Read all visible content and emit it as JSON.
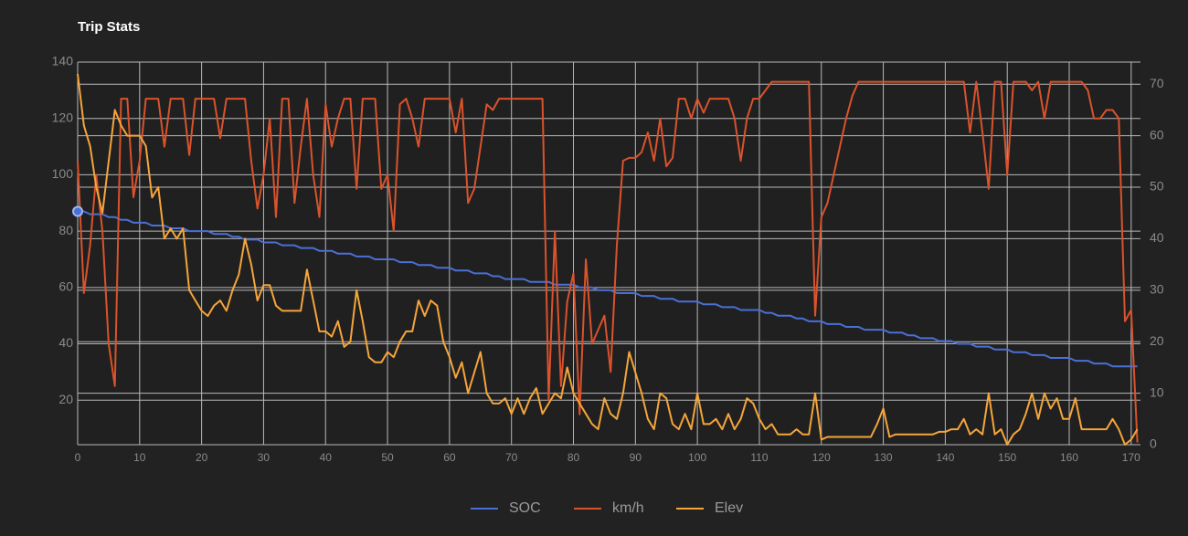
{
  "chart_data": {
    "type": "line",
    "title": "Trip Stats",
    "x": [
      0,
      1,
      2,
      3,
      4,
      5,
      6,
      7,
      8,
      9,
      10,
      11,
      12,
      13,
      14,
      15,
      16,
      17,
      18,
      19,
      20,
      21,
      22,
      23,
      24,
      25,
      26,
      27,
      28,
      29,
      30,
      31,
      32,
      33,
      34,
      35,
      36,
      37,
      38,
      39,
      40,
      41,
      42,
      43,
      44,
      45,
      46,
      47,
      48,
      49,
      50,
      51,
      52,
      53,
      54,
      55,
      56,
      57,
      58,
      59,
      60,
      61,
      62,
      63,
      64,
      65,
      66,
      67,
      68,
      69,
      70,
      71,
      72,
      73,
      74,
      75,
      76,
      77,
      78,
      79,
      80,
      81,
      82,
      83,
      84,
      85,
      86,
      87,
      88,
      89,
      90,
      91,
      92,
      93,
      94,
      95,
      96,
      97,
      98,
      99,
      100,
      101,
      102,
      103,
      104,
      105,
      106,
      107,
      108,
      109,
      110,
      111,
      112,
      113,
      114,
      115,
      116,
      117,
      118,
      119,
      120,
      121,
      122,
      123,
      124,
      125,
      126,
      127,
      128,
      129,
      130,
      131,
      132,
      133,
      134,
      135,
      136,
      137,
      138,
      139,
      140,
      141,
      142,
      143,
      144,
      145,
      146,
      147,
      148,
      149,
      150,
      151,
      152,
      153,
      154,
      155,
      156,
      157,
      158,
      159,
      160,
      161,
      162,
      163,
      164,
      165,
      166,
      167,
      168,
      169,
      170,
      171
    ],
    "series": [
      {
        "name": "SOC",
        "color": "#4a6fd6",
        "axis": "y",
        "values": [
          87,
          87,
          86,
          86,
          86,
          85,
          85,
          84,
          84,
          83,
          83,
          83,
          82,
          82,
          82,
          81,
          81,
          81,
          80,
          80,
          80,
          80,
          79,
          79,
          79,
          78,
          78,
          77,
          77,
          77,
          76,
          76,
          76,
          75,
          75,
          75,
          74,
          74,
          74,
          73,
          73,
          73,
          72,
          72,
          72,
          71,
          71,
          71,
          70,
          70,
          70,
          70,
          69,
          69,
          69,
          68,
          68,
          68,
          67,
          67,
          67,
          66,
          66,
          66,
          65,
          65,
          65,
          64,
          64,
          63,
          63,
          63,
          63,
          62,
          62,
          62,
          62,
          61,
          61,
          61,
          61,
          60,
          60,
          60,
          59,
          59,
          59,
          58,
          58,
          58,
          58,
          57,
          57,
          57,
          56,
          56,
          56,
          55,
          55,
          55,
          55,
          54,
          54,
          54,
          53,
          53,
          53,
          52,
          52,
          52,
          52,
          51,
          51,
          50,
          50,
          50,
          49,
          49,
          48,
          48,
          48,
          47,
          47,
          47,
          46,
          46,
          46,
          45,
          45,
          45,
          45,
          44,
          44,
          44,
          43,
          43,
          42,
          42,
          42,
          41,
          41,
          41,
          40,
          40,
          40,
          39,
          39,
          39,
          38,
          38,
          38,
          37,
          37,
          37,
          36,
          36,
          36,
          35,
          35,
          35,
          35,
          34,
          34,
          34,
          33,
          33,
          33,
          32,
          32,
          32,
          32,
          32
        ]
      },
      {
        "name": "km/h",
        "color": "#d9532c",
        "axis": "y",
        "values": [
          105,
          58,
          75,
          100,
          80,
          40,
          25,
          127,
          127,
          92,
          105,
          127,
          127,
          127,
          110,
          127,
          127,
          127,
          107,
          127,
          127,
          127,
          127,
          113,
          127,
          127,
          127,
          127,
          105,
          88,
          100,
          120,
          85,
          127,
          127,
          90,
          110,
          127,
          100,
          85,
          125,
          110,
          120,
          127,
          127,
          95,
          127,
          127,
          127,
          95,
          100,
          80,
          125,
          127,
          120,
          110,
          127,
          127,
          127,
          127,
          127,
          115,
          127,
          90,
          95,
          110,
          125,
          123,
          127,
          127,
          127,
          127,
          127,
          127,
          127,
          127,
          20,
          80,
          25,
          55,
          65,
          15,
          70,
          40,
          45,
          50,
          30,
          75,
          105,
          106,
          106,
          108,
          115,
          105,
          120,
          103,
          106,
          127,
          127,
          120,
          127,
          122,
          127,
          127,
          127,
          127,
          120,
          105,
          120,
          127,
          127,
          130,
          133,
          133,
          133,
          133,
          133,
          133,
          133,
          50,
          85,
          90,
          100,
          110,
          120,
          128,
          133,
          133,
          133,
          133,
          133,
          133,
          133,
          133,
          133,
          133,
          133,
          133,
          133,
          133,
          133,
          133,
          133,
          133,
          115,
          133,
          115,
          95,
          133,
          133,
          100,
          133,
          133,
          133,
          130,
          133,
          120,
          133,
          133,
          133,
          133,
          133,
          133,
          130,
          120,
          120,
          123,
          123,
          120,
          48,
          52,
          5
        ]
      },
      {
        "name": "Elev",
        "color": "#f5a53a",
        "axis": "y2",
        "values": [
          72,
          62,
          58,
          50,
          45,
          55,
          65,
          62,
          60,
          60,
          60,
          58,
          48,
          50,
          40,
          42,
          40,
          42,
          30,
          28,
          26,
          25,
          27,
          28,
          26,
          30,
          33,
          40,
          35,
          28,
          31,
          31,
          27,
          26,
          26,
          26,
          26,
          34,
          28,
          22,
          22,
          21,
          24,
          19,
          20,
          30,
          24,
          17,
          16,
          16,
          18,
          17,
          20,
          22,
          22,
          28,
          25,
          28,
          27,
          20,
          17,
          13,
          16,
          10,
          14,
          18,
          10,
          8,
          8,
          9,
          6,
          9,
          6,
          9,
          11,
          6,
          8,
          10,
          9,
          15,
          10,
          8,
          6,
          4,
          3,
          9,
          6,
          5,
          10,
          18,
          14,
          10,
          5,
          3,
          10,
          9,
          4,
          3,
          6,
          3,
          10,
          4,
          4,
          5,
          3,
          6,
          3,
          5,
          9,
          8,
          5,
          3,
          4,
          2,
          2,
          2,
          3,
          2,
          2,
          10,
          1,
          1.5,
          1.5,
          1.5,
          1.5,
          1.5,
          1.5,
          1.5,
          1.5,
          4,
          7,
          1.5,
          2,
          2,
          2,
          2,
          2,
          2,
          2,
          2.5,
          2.5,
          3,
          3,
          5,
          2,
          3,
          2,
          10,
          2,
          3,
          0,
          2,
          3,
          6,
          10,
          5,
          10,
          7,
          9,
          5,
          5,
          9,
          3,
          3,
          3,
          3,
          3,
          5,
          3,
          0,
          1,
          3
        ]
      }
    ],
    "xlim": [
      0,
      171.5
    ],
    "xticks": [
      0,
      10,
      20,
      30,
      40,
      50,
      60,
      70,
      80,
      90,
      100,
      110,
      120,
      130,
      140,
      150,
      160,
      170
    ],
    "ylim": [
      4.2,
      140
    ],
    "yticks": [
      20,
      40,
      60,
      80,
      100,
      120,
      140
    ],
    "y2lim": [
      0,
      74.3
    ],
    "y2ticks": [
      0,
      10,
      20,
      30,
      40,
      50,
      60,
      70
    ],
    "grid": true,
    "legend": "bottom"
  }
}
